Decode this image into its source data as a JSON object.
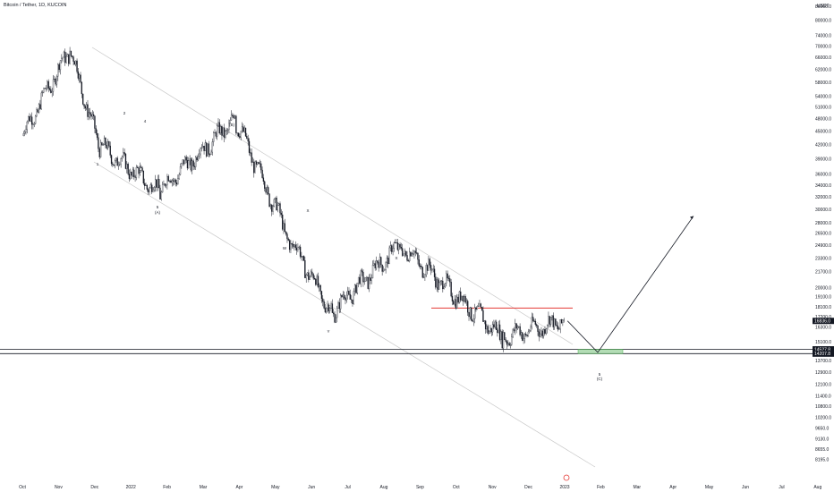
{
  "header": {
    "title": "Bitcoin / Tether, 1D, KUCOIN"
  },
  "chart_data": {
    "type": "candlestick",
    "symbol": "Bitcoin / Tether",
    "timeframe": "1D",
    "exchange": "KUCOIN",
    "currency": "USDT",
    "y_scale": "log",
    "ylim": [
      8000,
      90000
    ],
    "y_ticks": [
      {
        "value": 86000,
        "label": "86000.0"
      },
      {
        "value": 80000,
        "label": "80000.0"
      },
      {
        "value": 74000,
        "label": "74000.0"
      },
      {
        "value": 70000,
        "label": "70000.0"
      },
      {
        "value": 66000,
        "label": "66000.0"
      },
      {
        "value": 62000,
        "label": "62000.0"
      },
      {
        "value": 58000,
        "label": "58000.0"
      },
      {
        "value": 54000,
        "label": "54000.0"
      },
      {
        "value": 51000,
        "label": "51000.0"
      },
      {
        "value": 48000,
        "label": "48000.0"
      },
      {
        "value": 45000,
        "label": "45000.0"
      },
      {
        "value": 42000,
        "label": "42000.0"
      },
      {
        "value": 39000,
        "label": "39000.0"
      },
      {
        "value": 36000,
        "label": "36000.0"
      },
      {
        "value": 34000,
        "label": "34000.0"
      },
      {
        "value": 32000,
        "label": "32000.0"
      },
      {
        "value": 30000,
        "label": "30000.0"
      },
      {
        "value": 28000,
        "label": "28000.0"
      },
      {
        "value": 26500,
        "label": "26500.0"
      },
      {
        "value": 24900,
        "label": "24900.0"
      },
      {
        "value": 23300,
        "label": "23300.0"
      },
      {
        "value": 21700,
        "label": "21700.0"
      },
      {
        "value": 20000,
        "label": "20000.0"
      },
      {
        "value": 19100,
        "label": "19100.0"
      },
      {
        "value": 18100,
        "label": "18100.0"
      },
      {
        "value": 17200,
        "label": "17200.0"
      },
      {
        "value": 16300,
        "label": "16300.0"
      },
      {
        "value": 15100,
        "label": "15100.0"
      },
      {
        "value": 13700,
        "label": "13700.0"
      },
      {
        "value": 12900,
        "label": "12900.0"
      },
      {
        "value": 12100,
        "label": "12100.0"
      },
      {
        "value": 11400,
        "label": "11400.0"
      },
      {
        "value": 10800,
        "label": "10800.0"
      },
      {
        "value": 10200,
        "label": "10200.0"
      },
      {
        "value": 9650,
        "label": "9650.0"
      },
      {
        "value": 9130,
        "label": "9130.0"
      },
      {
        "value": 8655,
        "label": "8655.0"
      },
      {
        "value": 8195,
        "label": "8195.0"
      }
    ],
    "x_ticks": [
      "Oct",
      "Nov",
      "Dec",
      "2022",
      "Feb",
      "Mar",
      "Apr",
      "May",
      "Jun",
      "Jul",
      "Aug",
      "Sep",
      "Oct",
      "Nov",
      "Dec",
      "2023",
      "Feb",
      "Mar",
      "Apr",
      "May",
      "Jun",
      "Jul",
      "Aug"
    ],
    "price_badges": [
      {
        "value": 16836.0,
        "label": "16836.0",
        "color": "#131722"
      },
      {
        "value": 14527.8,
        "label": "14527.8",
        "color": "#131722"
      },
      {
        "value": 14207.8,
        "label": "14207.8",
        "color": "#131722"
      }
    ],
    "horizontal_lines": [
      {
        "value": 14527.8,
        "color": "#131722"
      },
      {
        "value": 14207.8,
        "color": "#131722"
      }
    ],
    "resistance_line": {
      "value": 18000,
      "color": "#e53935"
    },
    "target_zone": {
      "low": 14207.8,
      "high": 14527.8,
      "color": "#81c784"
    },
    "wave_labels": [
      "1",
      "2",
      "3",
      "4",
      "5",
      "(A)",
      "(B)",
      "W",
      "X",
      "Y",
      "(C)"
    ],
    "projection": {
      "from": 16836,
      "low": 14300,
      "target": 29000
    },
    "key_points": [
      {
        "date": "2021-10-01",
        "price": 44000
      },
      {
        "date": "2021-11-10",
        "price": 69000
      },
      {
        "date": "2021-12-04",
        "price": 42000
      },
      {
        "date": "2022-01-24",
        "price": 33000
      },
      {
        "date": "2022-03-29",
        "price": 48000
      },
      {
        "date": "2022-05-12",
        "price": 26500
      },
      {
        "date": "2022-06-18",
        "price": 17600
      },
      {
        "date": "2022-08-15",
        "price": 25000
      },
      {
        "date": "2022-11-09",
        "price": 15500
      },
      {
        "date": "2022-12-31",
        "price": 16836
      }
    ]
  },
  "colors": {
    "up_candle": "#ffffff",
    "down_candle": "#131722",
    "wick": "#131722",
    "channel": "#c8c8c8",
    "accent_red": "#e53935",
    "zone_green": "#81c784"
  },
  "footer": {
    "icon": "tv-logo-icon"
  }
}
